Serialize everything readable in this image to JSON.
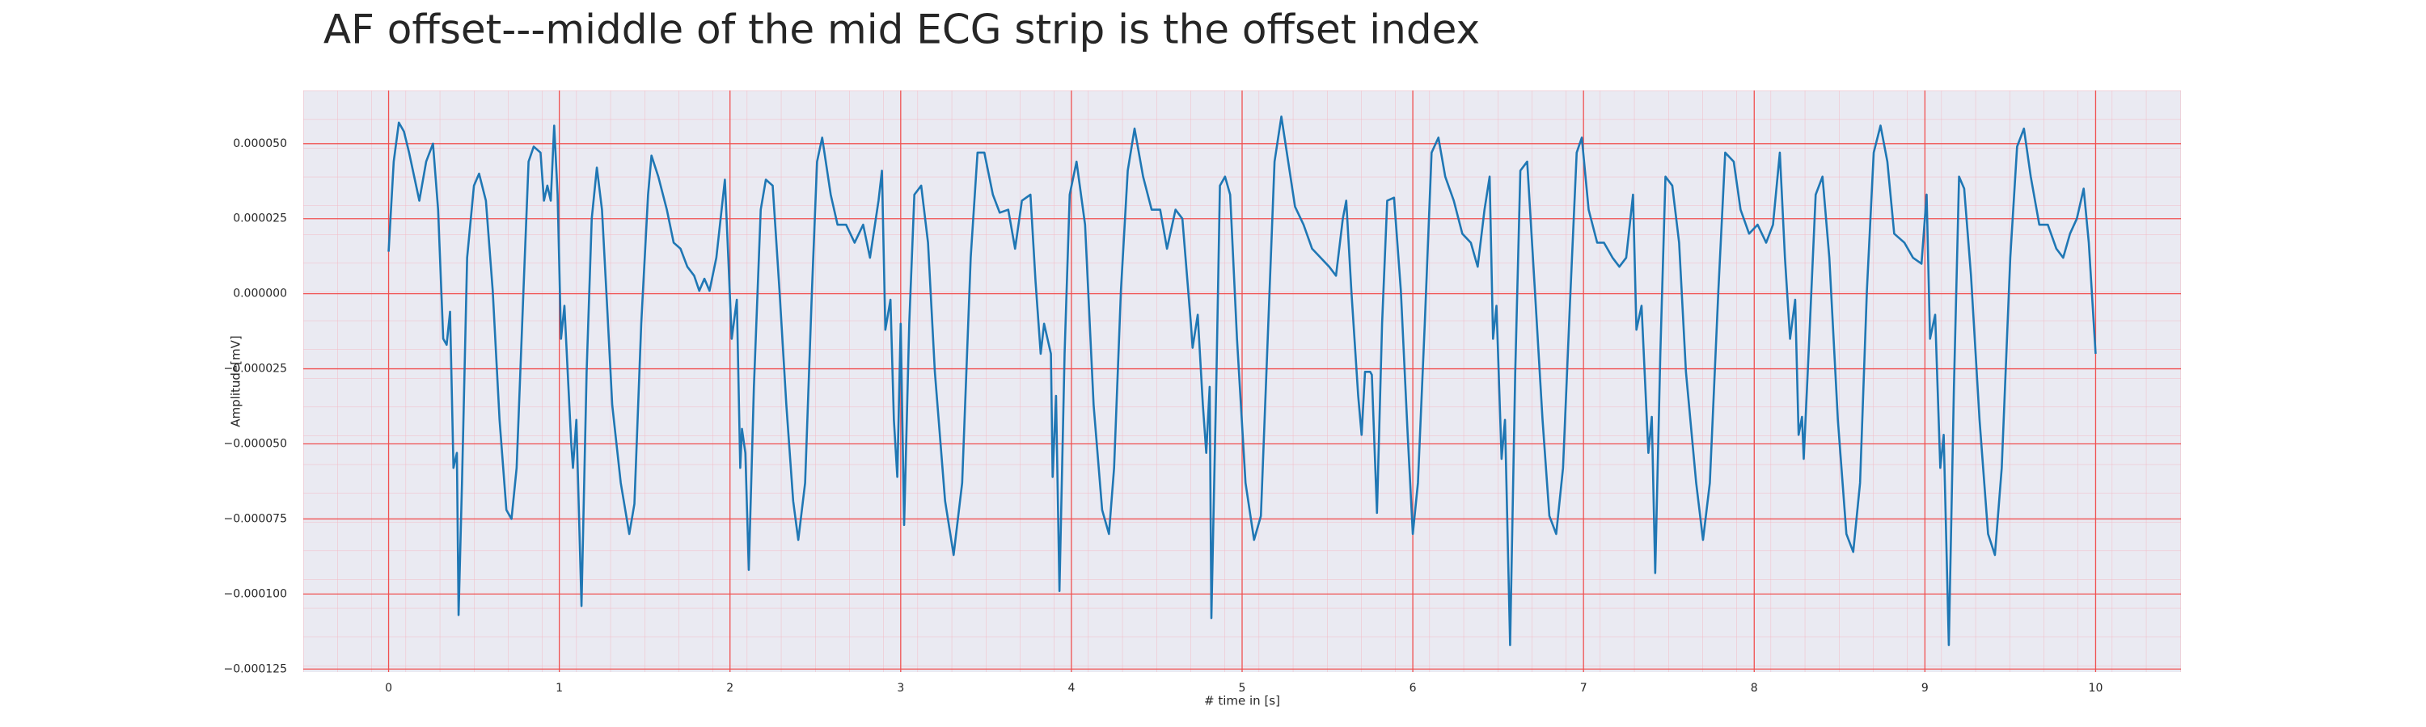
{
  "chart_data": {
    "type": "line",
    "title": "AF offset---middle of the mid ECG strip is the offset index",
    "x_label": "# time in [s]",
    "y_label": "Amplitude[mV]",
    "color": "#1f77b4",
    "grid": true,
    "grid_color": "#f05050",
    "xlim": [
      -0.5,
      10.5
    ],
    "ylim": [
      -0.000126,
      6.77e-05
    ],
    "xticks": [
      0,
      1,
      2,
      3,
      4,
      5,
      6,
      7,
      8,
      9,
      10
    ],
    "yticks": [
      {
        "value": 5e-05,
        "label": "0.000050"
      },
      {
        "value": 2.5e-05,
        "label": "0.000025"
      },
      {
        "value": 0,
        "label": "0.000000"
      },
      {
        "value": -2.5e-05,
        "label": "−0.000025"
      },
      {
        "value": -5e-05,
        "label": "−0.000050"
      },
      {
        "value": -7.5e-05,
        "label": "−0.000075"
      },
      {
        "value": -0.0001,
        "label": "−0.000100"
      },
      {
        "value": -0.000125,
        "label": "−0.000125"
      }
    ],
    "x": [
      0,
      0.03,
      0.06,
      0.09,
      0.12,
      0.15,
      0.18,
      0.22,
      0.26,
      0.29,
      0.32,
      0.34,
      0.36,
      0.38,
      0.4,
      0.41,
      0.43,
      0.46,
      0.5,
      0.53,
      0.57,
      0.61,
      0.65,
      0.69,
      0.72,
      0.75,
      0.79,
      0.82,
      0.85,
      0.89,
      0.91,
      0.93,
      0.95,
      0.97,
      0.99,
      1.01,
      1.03,
      1.07,
      1.08,
      1.1,
      1.13,
      1.16,
      1.19,
      1.22,
      1.25,
      1.28,
      1.31,
      1.36,
      1.41,
      1.44,
      1.48,
      1.52,
      1.54,
      1.58,
      1.63,
      1.67,
      1.71,
      1.75,
      1.79,
      1.82,
      1.85,
      1.88,
      1.92,
      1.97,
      1.99,
      2.01,
      2.04,
      2.06,
      2.07,
      2.09,
      2.11,
      2.14,
      2.18,
      2.21,
      2.25,
      2.29,
      2.33,
      2.37,
      2.4,
      2.44,
      2.48,
      2.51,
      2.54,
      2.59,
      2.63,
      2.68,
      2.73,
      2.78,
      2.82,
      2.87,
      2.89,
      2.91,
      2.94,
      2.96,
      2.98,
      3.0,
      3.02,
      3.05,
      3.08,
      3.12,
      3.16,
      3.2,
      3.26,
      3.31,
      3.36,
      3.41,
      3.45,
      3.49,
      3.54,
      3.58,
      3.63,
      3.67,
      3.71,
      3.76,
      3.79,
      3.82,
      3.84,
      3.88,
      3.89,
      3.91,
      3.93,
      3.96,
      3.99,
      4.03,
      4.08,
      4.13,
      4.18,
      4.22,
      4.25,
      4.29,
      4.33,
      4.37,
      4.42,
      4.47,
      4.52,
      4.56,
      4.61,
      4.65,
      4.7,
      4.71,
      4.74,
      4.77,
      4.79,
      4.81,
      4.82,
      4.85,
      4.87,
      4.9,
      4.93,
      4.97,
      5.02,
      5.07,
      5.11,
      5.15,
      5.19,
      5.23,
      5.27,
      5.31,
      5.36,
      5.41,
      5.46,
      5.51,
      5.55,
      5.59,
      5.61,
      5.64,
      5.68,
      5.7,
      5.72,
      5.75,
      5.76,
      5.79,
      5.82,
      5.85,
      5.89,
      5.93,
      5.97,
      6.0,
      6.03,
      6.07,
      6.11,
      6.15,
      6.19,
      6.24,
      6.29,
      6.34,
      6.38,
      6.42,
      6.45,
      6.47,
      6.49,
      6.52,
      6.54,
      6.57,
      6.6,
      6.63,
      6.67,
      6.71,
      6.76,
      6.8,
      6.84,
      6.88,
      6.92,
      6.96,
      6.99,
      7.03,
      7.08,
      7.12,
      7.17,
      7.21,
      7.25,
      7.29,
      7.31,
      7.34,
      7.38,
      7.4,
      7.42,
      7.45,
      7.48,
      7.52,
      7.56,
      7.6,
      7.66,
      7.7,
      7.74,
      7.79,
      7.83,
      7.88,
      7.92,
      7.97,
      8.02,
      8.07,
      8.11,
      8.15,
      8.18,
      8.21,
      8.24,
      8.26,
      8.28,
      8.29,
      8.32,
      8.36,
      8.4,
      8.44,
      8.49,
      8.54,
      8.58,
      8.62,
      8.66,
      8.7,
      8.74,
      8.78,
      8.82,
      8.88,
      8.93,
      8.98,
      9.01,
      9.03,
      9.06,
      9.09,
      9.11,
      9.14,
      9.17,
      9.2,
      9.23,
      9.27,
      9.32,
      9.37,
      9.41,
      9.45,
      9.5,
      9.54,
      9.58,
      9.62,
      9.67,
      9.72,
      9.77,
      9.81,
      9.85,
      9.89,
      9.93,
      9.96,
      10.0
    ],
    "values": [
      1.4e-05,
      4.4e-05,
      5.7e-05,
      5.4e-05,
      4.7e-05,
      3.9e-05,
      3.1e-05,
      4.4e-05,
      5e-05,
      2.8e-05,
      -1.5e-05,
      -1.7e-05,
      -6e-06,
      -5.8e-05,
      -5.3e-05,
      -0.000107,
      -6.3e-05,
      1.2e-05,
      3.6e-05,
      4e-05,
      3.1e-05,
      1e-06,
      -4.2e-05,
      -7.2e-05,
      -7.5e-05,
      -5.8e-05,
      1e-06,
      4.4e-05,
      4.9e-05,
      4.7e-05,
      3.1e-05,
      3.6e-05,
      3.1e-05,
      5.6e-05,
      3.3e-05,
      -1.5e-05,
      -4e-06,
      -5e-05,
      -5.8e-05,
      -4.2e-05,
      -0.000104,
      -2.6e-05,
      2.5e-05,
      4.2e-05,
      2.8e-05,
      -4e-06,
      -3.7e-05,
      -6.3e-05,
      -8e-05,
      -7e-05,
      -1e-05,
      3.3e-05,
      4.6e-05,
      3.9e-05,
      2.8e-05,
      1.7e-05,
      1.5e-05,
      9e-06,
      6e-06,
      1e-06,
      5e-06,
      1e-06,
      1.2e-05,
      3.8e-05,
      1.2e-05,
      -1.5e-05,
      -2e-06,
      -5.8e-05,
      -4.5e-05,
      -5.3e-05,
      -9.2e-05,
      -3.1e-05,
      2.8e-05,
      3.8e-05,
      3.6e-05,
      1e-06,
      -3.7e-05,
      -6.9e-05,
      -8.2e-05,
      -6.3e-05,
      1e-06,
      4.4e-05,
      5.2e-05,
      3.3e-05,
      2.3e-05,
      2.3e-05,
      1.7e-05,
      2.3e-05,
      1.2e-05,
      3.1e-05,
      4.1e-05,
      -1.2e-05,
      -2e-06,
      -4.2e-05,
      -6.1e-05,
      -1e-05,
      -7.7e-05,
      -1e-05,
      3.3e-05,
      3.6e-05,
      1.7e-05,
      -2.6e-05,
      -6.9e-05,
      -8.7e-05,
      -6.3e-05,
      1.2e-05,
      4.7e-05,
      4.7e-05,
      3.3e-05,
      2.7e-05,
      2.8e-05,
      1.5e-05,
      3.1e-05,
      3.3e-05,
      4e-06,
      -2e-05,
      -1e-05,
      -2e-05,
      -6.1e-05,
      -3.4e-05,
      -9.9e-05,
      -2e-05,
      3.3e-05,
      4.4e-05,
      2.3e-05,
      -3.7e-05,
      -7.2e-05,
      -8e-05,
      -5.8e-05,
      1e-06,
      4.1e-05,
      5.5e-05,
      3.9e-05,
      2.8e-05,
      2.8e-05,
      1.5e-05,
      2.8e-05,
      2.5e-05,
      -1e-05,
      -1.8e-05,
      -7e-06,
      -3.7e-05,
      -5.3e-05,
      -3.1e-05,
      -0.000108,
      -2.6e-05,
      3.6e-05,
      3.9e-05,
      3.3e-05,
      -1.5e-05,
      -6.3e-05,
      -8.2e-05,
      -7.4e-05,
      -1.5e-05,
      4.4e-05,
      5.9e-05,
      4.4e-05,
      2.9e-05,
      2.3e-05,
      1.5e-05,
      1.2e-05,
      9e-06,
      6e-06,
      2.5e-05,
      3.1e-05,
      1e-06,
      -3.4e-05,
      -4.7e-05,
      -2.6e-05,
      -2.6e-05,
      -2.7e-05,
      -7.3e-05,
      -1e-05,
      3.1e-05,
      3.2e-05,
      1e-06,
      -4.7e-05,
      -8e-05,
      -6.3e-05,
      -1e-05,
      4.7e-05,
      5.2e-05,
      3.9e-05,
      3.1e-05,
      2e-05,
      1.7e-05,
      9e-06,
      2.8e-05,
      3.9e-05,
      -1.5e-05,
      -4e-06,
      -5.5e-05,
      -4.2e-05,
      -0.000117,
      -2.6e-05,
      4.1e-05,
      4.4e-05,
      6e-06,
      -4.2e-05,
      -7.4e-05,
      -8e-05,
      -5.8e-05,
      -4e-06,
      4.7e-05,
      5.2e-05,
      2.8e-05,
      1.7e-05,
      1.7e-05,
      1.2e-05,
      9e-06,
      1.2e-05,
      3.3e-05,
      -1.2e-05,
      -4e-06,
      -5.3e-05,
      -4.1e-05,
      -9.3e-05,
      -2e-05,
      3.9e-05,
      3.6e-05,
      1.7e-05,
      -2.6e-05,
      -6.3e-05,
      -8.2e-05,
      -6.3e-05,
      1e-06,
      4.7e-05,
      4.4e-05,
      2.8e-05,
      2e-05,
      2.3e-05,
      1.7e-05,
      2.3e-05,
      4.7e-05,
      1.2e-05,
      -1.5e-05,
      -2e-06,
      -4.7e-05,
      -4.1e-05,
      -5.5e-05,
      -1.8e-05,
      3.3e-05,
      3.9e-05,
      1.2e-05,
      -4.2e-05,
      -8e-05,
      -8.6e-05,
      -6.3e-05,
      1e-06,
      4.7e-05,
      5.6e-05,
      4.4e-05,
      2e-05,
      1.7e-05,
      1.2e-05,
      1e-05,
      3.3e-05,
      -1.5e-05,
      -7e-06,
      -5.8e-05,
      -4.7e-05,
      -0.000117,
      -3.1e-05,
      3.9e-05,
      3.5e-05,
      6e-06,
      -4.2e-05,
      -8e-05,
      -8.7e-05,
      -5.8e-05,
      1.2e-05,
      4.9e-05,
      5.5e-05,
      3.9e-05,
      2.3e-05,
      2.3e-05,
      1.5e-05,
      1.2e-05,
      2e-05,
      2.5e-05,
      3.5e-05,
      1.7e-05,
      -2e-05
    ]
  }
}
